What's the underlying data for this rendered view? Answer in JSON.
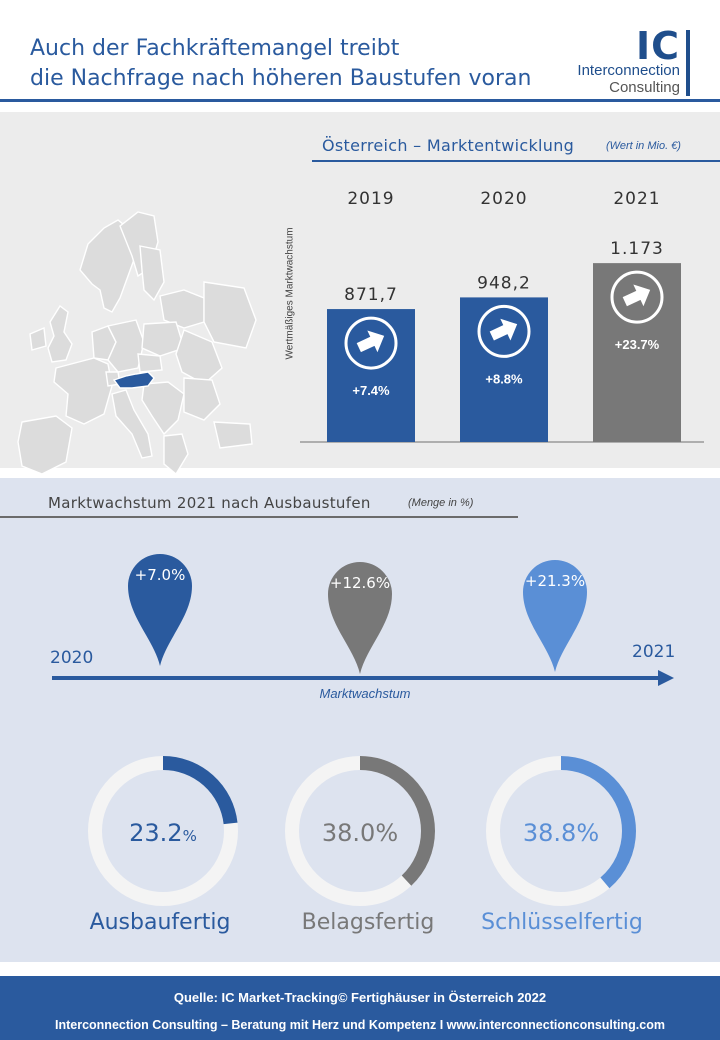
{
  "header": {
    "title_line1": "Auch der Fachkräftemangel treibt",
    "title_line2": "die Nachfrage nach höheren Baustufen voran",
    "logo_ic": "IC",
    "logo_name1": "Interconnection",
    "logo_name2": "Consulting"
  },
  "colors": {
    "brand_blue": "#2a5a9e",
    "gray": "#787878",
    "light_blue": "#5a8fd6",
    "ring_bg": "#f2f2f2",
    "map_fill": "#dcdcdc",
    "austria": "#2a5a9e"
  },
  "market": {
    "title": "Österreich – Marktentwicklung",
    "unit": "(Wert in Mio. €)",
    "ylabel": "Wertmäßiges Marktwachstum"
  },
  "growth": {
    "title": "Marktwachstum 2021 nach Ausbaustufen",
    "unit": "(Menge in %)",
    "year_start": "2020",
    "year_end": "2021",
    "axis_caption": "Marktwachstum"
  },
  "footer": {
    "source": "Quelle: IC Market-Tracking© Fertighäuser in Österreich 2022",
    "tagline": "Interconnection Consulting – Beratung mit Herz und Kompetenz  I  www.interconnectionconsulting.com"
  },
  "chart_data": [
    {
      "type": "bar",
      "title": "Österreich – Marktentwicklung",
      "unit": "(Wert in Mio. €)",
      "ylabel": "Wertmäßiges Marktwachstum",
      "categories": [
        "2019",
        "2020",
        "2021"
      ],
      "values": [
        871.7,
        948.2,
        1173
      ],
      "value_labels": [
        "871,7",
        "948,2",
        "1.173"
      ],
      "growth_labels": [
        "+7.4%",
        "+8.8%",
        "+23.7%"
      ],
      "bar_colors": [
        "#2a5a9e",
        "#2a5a9e",
        "#787878"
      ],
      "icon": "arrow-up-right-icon"
    },
    {
      "type": "pie",
      "title": "Marktwachstum 2021 nach Ausbaustufen",
      "unit": "(Menge in %)",
      "categories": [
        "Ausbaufertig",
        "Belagsfertig",
        "Schlüsselfertig"
      ],
      "growth_labels": [
        "+7.0%",
        "+12.6%",
        "+21.3%"
      ],
      "share_labels": [
        "23.2",
        "38.0%",
        "38.8%"
      ],
      "share_suffix": [
        "%",
        "",
        ""
      ],
      "values": [
        23.2,
        38.0,
        38.8
      ],
      "colors": [
        "#2a5a9e",
        "#787878",
        "#5a8fd6"
      ]
    }
  ]
}
